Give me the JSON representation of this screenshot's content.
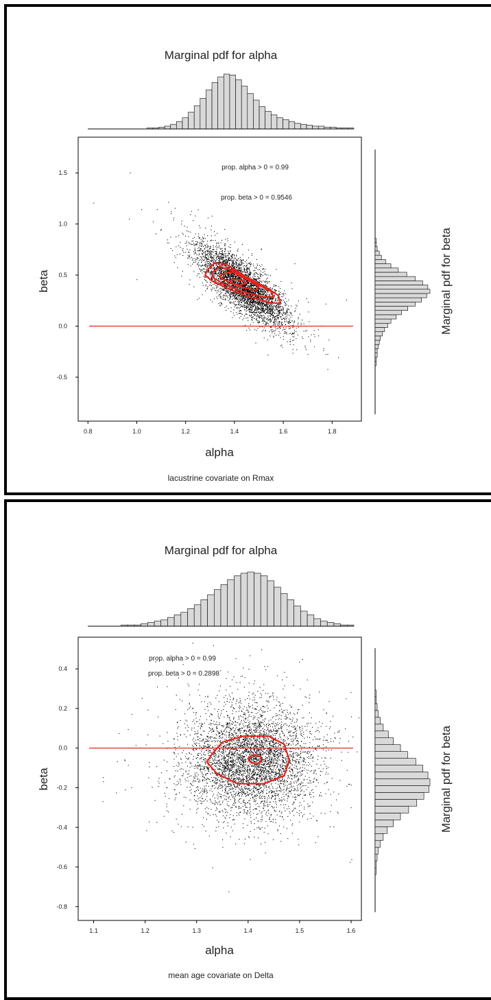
{
  "figure": {
    "colors": {
      "points": "#000000",
      "contour": "#e8221a",
      "refline": "#e8221a",
      "bars": "#d9d9d9",
      "frame": "#000000"
    }
  },
  "chart_data": [
    {
      "type": "scatter",
      "title": "Marginal pdf for alpha",
      "right_title": "Marginal pdf for beta",
      "xlabel": "alpha",
      "ylabel": "beta",
      "subtitle": "lacustrine covariate on Rmax",
      "annotations": [
        "prop. alpha > 0 = 0.99",
        "prop. beta > 0 = 0.9546"
      ],
      "xlim": [
        0.76,
        1.92
      ],
      "ylim": [
        -0.93,
        1.85
      ],
      "x_ticks": [
        "0.8",
        "1.0",
        "1.2",
        "1.4",
        "1.6",
        "1.8"
      ],
      "x_tick_values": [
        0.8,
        1.0,
        1.2,
        1.4,
        1.6,
        1.8
      ],
      "y_ticks": [
        "1.5",
        "1.0",
        "0.5",
        "0.0",
        "-0.5"
      ],
      "y_tick_values": [
        1.5,
        1.0,
        0.5,
        0.0,
        -0.5
      ],
      "reference_line_y": 0.0,
      "posterior": {
        "alpha_center": 1.43,
        "alpha_sd": 0.095,
        "beta_center": 0.4,
        "beta_sd": 0.2,
        "correlation": -0.8
      },
      "contours": [
        {
          "level": "outer",
          "points": [
            [
              1.29,
              0.55
            ],
            [
              1.32,
              0.62
            ],
            [
              1.37,
              0.6
            ],
            [
              1.45,
              0.48
            ],
            [
              1.53,
              0.38
            ],
            [
              1.58,
              0.3
            ],
            [
              1.59,
              0.22
            ],
            [
              1.55,
              0.23
            ],
            [
              1.47,
              0.28
            ],
            [
              1.38,
              0.36
            ],
            [
              1.31,
              0.44
            ],
            [
              1.28,
              0.5
            ]
          ]
        },
        {
          "level": "mid",
          "points": [
            [
              1.31,
              0.53
            ],
            [
              1.34,
              0.58
            ],
            [
              1.4,
              0.54
            ],
            [
              1.48,
              0.43
            ],
            [
              1.55,
              0.34
            ],
            [
              1.56,
              0.28
            ],
            [
              1.51,
              0.29
            ],
            [
              1.43,
              0.34
            ],
            [
              1.35,
              0.42
            ],
            [
              1.31,
              0.48
            ]
          ]
        },
        {
          "level": "inner",
          "points": [
            [
              1.35,
              0.51
            ],
            [
              1.39,
              0.53
            ],
            [
              1.45,
              0.46
            ],
            [
              1.5,
              0.39
            ],
            [
              1.49,
              0.35
            ],
            [
              1.43,
              0.38
            ],
            [
              1.37,
              0.44
            ],
            [
              1.34,
              0.48
            ]
          ]
        },
        {
          "level": "core",
          "points": [
            [
              1.39,
              0.46
            ],
            [
              1.43,
              0.45
            ],
            [
              1.45,
              0.42
            ],
            [
              1.42,
              0.4
            ],
            [
              1.38,
              0.43
            ]
          ]
        }
      ],
      "alpha_hist": {
        "range": [
          0.82,
          1.9
        ],
        "density": [
          0,
          0,
          0,
          0,
          0,
          0,
          0,
          0,
          0,
          0,
          0.1,
          0.1,
          0.2,
          0.3,
          0.5,
          0.8,
          1.2,
          1.8,
          2.5,
          3.3,
          4.2,
          5.0,
          5.6,
          5.9,
          5.8,
          5.3,
          4.6,
          3.8,
          3.1,
          2.4,
          1.9,
          1.5,
          1.2,
          1.0,
          0.8,
          0.6,
          0.5,
          0.4,
          0.3,
          0.3,
          0.2,
          0.2,
          0.1,
          0.1,
          0.1
        ]
      },
      "beta_hist": {
        "range": [
          -0.9,
          0.9
        ],
        "density": [
          0,
          0,
          0,
          0,
          0.1,
          0.1,
          0.2,
          0.2,
          0.3,
          0.4,
          0.5,
          0.7,
          0.9,
          1.2,
          1.5,
          2.0,
          2.5,
          3.1,
          3.8,
          4.4,
          4.9,
          5.2,
          5.0,
          4.5,
          3.8,
          3.0,
          2.2,
          1.5,
          1.0,
          0.6,
          0.4,
          0.2,
          0.1,
          0.1,
          0,
          0
        ]
      }
    },
    {
      "type": "scatter",
      "title": "Marginal pdf for alpha",
      "right_title": "Marginal pdf for beta",
      "xlabel": "alpha",
      "ylabel": "beta",
      "subtitle": "mean age covariate on Delta",
      "annotations": [
        "prop. alpha > 0 = 0.99",
        "prop. beta > 0 = 0.2898"
      ],
      "xlim": [
        1.07,
        1.62
      ],
      "ylim": [
        -0.87,
        0.56
      ],
      "x_ticks": [
        "1.1",
        "1.2",
        "1.3",
        "1.4",
        "1.5",
        "1.6"
      ],
      "x_tick_values": [
        1.1,
        1.2,
        1.3,
        1.4,
        1.5,
        1.6
      ],
      "y_ticks": [
        "0.4",
        "0.2",
        "0.0",
        "-0.2",
        "-0.4",
        "-0.6",
        "-0.8"
      ],
      "y_tick_values": [
        0.4,
        0.2,
        0.0,
        -0.2,
        -0.4,
        -0.6,
        -0.8
      ],
      "reference_line_y": 0.0,
      "posterior": {
        "alpha_center": 1.405,
        "alpha_sd": 0.065,
        "beta_center": -0.06,
        "beta_sd": 0.14,
        "correlation": 0.0
      },
      "contours": [
        {
          "level": "outer",
          "points": [
            [
              1.33,
              -0.03
            ],
            [
              1.35,
              0.03
            ],
            [
              1.39,
              0.06
            ],
            [
              1.44,
              0.06
            ],
            [
              1.47,
              0.02
            ],
            [
              1.48,
              -0.06
            ],
            [
              1.47,
              -0.14
            ],
            [
              1.43,
              -0.18
            ],
            [
              1.38,
              -0.18
            ],
            [
              1.34,
              -0.13
            ],
            [
              1.32,
              -0.07
            ]
          ]
        },
        {
          "level": "inner",
          "points": [
            [
              1.405,
              -0.04
            ],
            [
              1.415,
              -0.035
            ],
            [
              1.425,
              -0.045
            ],
            [
              1.425,
              -0.07
            ],
            [
              1.415,
              -0.08
            ],
            [
              1.405,
              -0.07
            ],
            [
              1.4,
              -0.055
            ]
          ]
        }
      ],
      "alpha_hist": {
        "range": [
          1.1,
          1.6
        ],
        "density": [
          0,
          0,
          0,
          0,
          0,
          0.1,
          0.1,
          0.1,
          0.2,
          0.3,
          0.4,
          0.5,
          0.7,
          0.9,
          1.1,
          1.4,
          1.7,
          2.1,
          2.5,
          2.9,
          3.3,
          3.7,
          4.0,
          4.2,
          4.3,
          4.2,
          4.0,
          3.6,
          3.1,
          2.6,
          2.1,
          1.6,
          1.2,
          0.9,
          0.6,
          0.4,
          0.3,
          0.2,
          0.1,
          0.1
        ]
      },
      "beta_hist": {
        "range": [
          -0.84,
          0.45
        ],
        "density": [
          0,
          0,
          0,
          0.1,
          0.1,
          0.2,
          0.3,
          0.5,
          0.8,
          1.2,
          1.8,
          2.5,
          3.3,
          4.1,
          4.8,
          5.3,
          5.4,
          5.2,
          4.7,
          4.0,
          3.2,
          2.5,
          1.8,
          1.3,
          0.8,
          0.5,
          0.3,
          0.2,
          0.1,
          0.1,
          0,
          0
        ]
      }
    }
  ]
}
